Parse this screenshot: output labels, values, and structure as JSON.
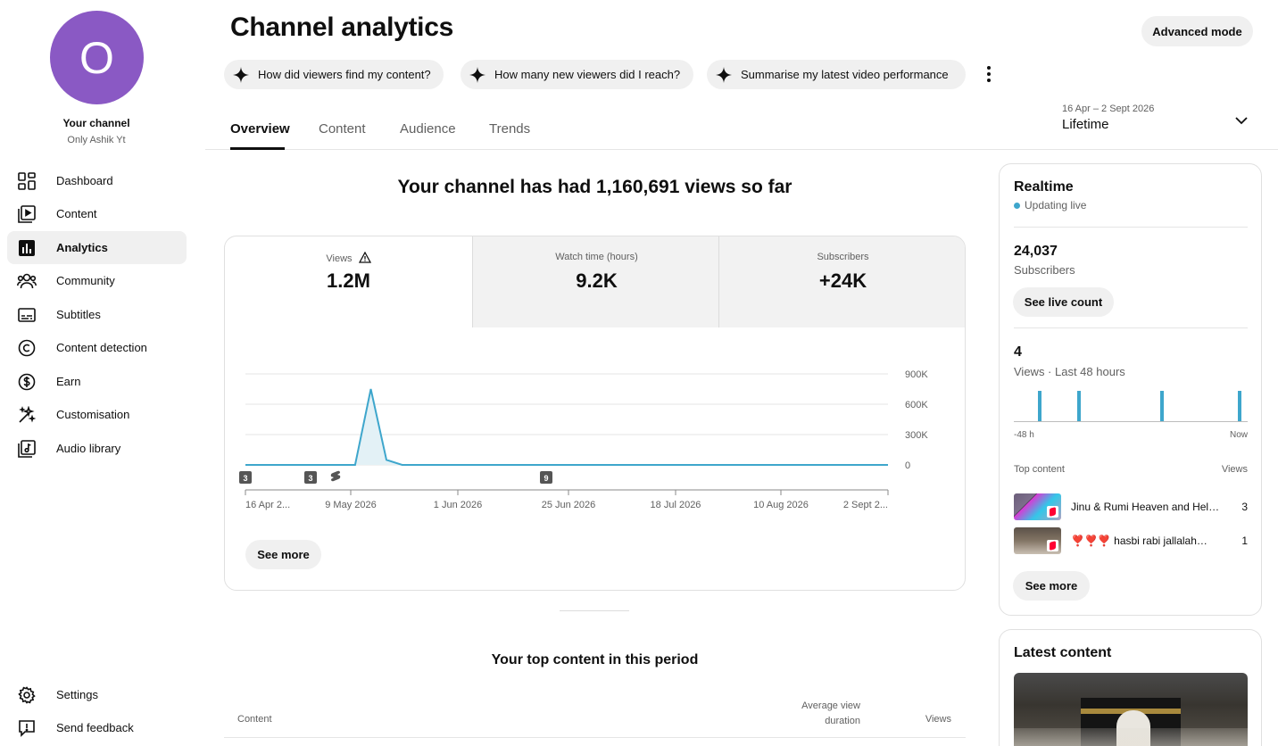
{
  "channel": {
    "avatar_letter": "O",
    "label": "Your channel",
    "name": "Only Ashik Yt",
    "avatar_color": "#8a59c4"
  },
  "sidebar": {
    "items": [
      {
        "label": "Dashboard",
        "icon": "dashboard-icon"
      },
      {
        "label": "Content",
        "icon": "content-icon"
      },
      {
        "label": "Analytics",
        "icon": "analytics-icon",
        "active": true
      },
      {
        "label": "Community",
        "icon": "community-icon"
      },
      {
        "label": "Subtitles",
        "icon": "subtitles-icon"
      },
      {
        "label": "Content detection",
        "icon": "copyright-icon"
      },
      {
        "label": "Earn",
        "icon": "dollar-icon"
      },
      {
        "label": "Customisation",
        "icon": "magic-wand-icon"
      },
      {
        "label": "Audio library",
        "icon": "audio-library-icon"
      }
    ],
    "bottom_items": [
      {
        "label": "Settings",
        "icon": "gear-icon"
      },
      {
        "label": "Send feedback",
        "icon": "feedback-icon"
      }
    ]
  },
  "header": {
    "title": "Channel analytics",
    "advanced_mode_label": "Advanced mode",
    "suggestions": [
      "How did viewers find my content?",
      "How many new viewers did I reach?",
      "Summarise my latest video performance"
    ],
    "tabs": [
      "Overview",
      "Content",
      "Audience",
      "Trends"
    ],
    "active_tab": "Overview",
    "period": {
      "range": "16 Apr – 2 Sept 2026",
      "value": "Lifetime"
    }
  },
  "overview": {
    "headline": "Your channel has had 1,160,691 views so far",
    "metrics": [
      {
        "label": "Views",
        "value": "1.2M",
        "warning": true,
        "active": true
      },
      {
        "label": "Watch time (hours)",
        "value": "9.2K"
      },
      {
        "label": "Subscribers",
        "value": "+24K"
      }
    ],
    "see_more_label": "See more"
  },
  "chart_data": {
    "type": "line",
    "series": [
      {
        "values": [
          0,
          0,
          0,
          0,
          0,
          0,
          0,
          0,
          750000,
          50000,
          0,
          0,
          0,
          0,
          0,
          0,
          0,
          0,
          0,
          0,
          0,
          0,
          0,
          0,
          0,
          0,
          0,
          0,
          0,
          0,
          0,
          0,
          0,
          0,
          0,
          0,
          0,
          0,
          0,
          0,
          0,
          0
        ]
      }
    ],
    "x_tick_labels": [
      "16 Apr 2...",
      "9 May 2026",
      "1 Jun 2026",
      "25 Jun 2026",
      "18 Jul 2026",
      "10 Aug 2026",
      "2 Sept 2..."
    ],
    "y_tick_labels": [
      "900K",
      "600K",
      "300K",
      "0"
    ],
    "ylim": [
      0,
      900000
    ],
    "grid": true,
    "color": "#3ea6cc",
    "markers": [
      "3",
      "3",
      "9"
    ]
  },
  "top_content": {
    "title": "Your top content in this period",
    "columns": {
      "content": "Content",
      "avg_duration": "Average view duration",
      "views": "Views"
    }
  },
  "realtime": {
    "title": "Realtime",
    "status": "Updating live",
    "subscribers_value": "24,037",
    "subscribers_label": "Subscribers",
    "live_count_label": "See live count",
    "views_value": "4",
    "views_label": "Views · Last 48 hours",
    "axis_start": "-48 h",
    "axis_end": "Now",
    "bars": [
      1,
      1,
      1,
      1
    ],
    "top_content_header": "Top content",
    "views_header": "Views",
    "items": [
      {
        "title": "Jinu & Rumi Heaven and Hell…",
        "views": "3"
      },
      {
        "title": "❣️❣️❣️ hasbi rabi jallalah…",
        "views": "1"
      }
    ],
    "see_more_label": "See more"
  },
  "latest_content": {
    "title": "Latest content"
  }
}
